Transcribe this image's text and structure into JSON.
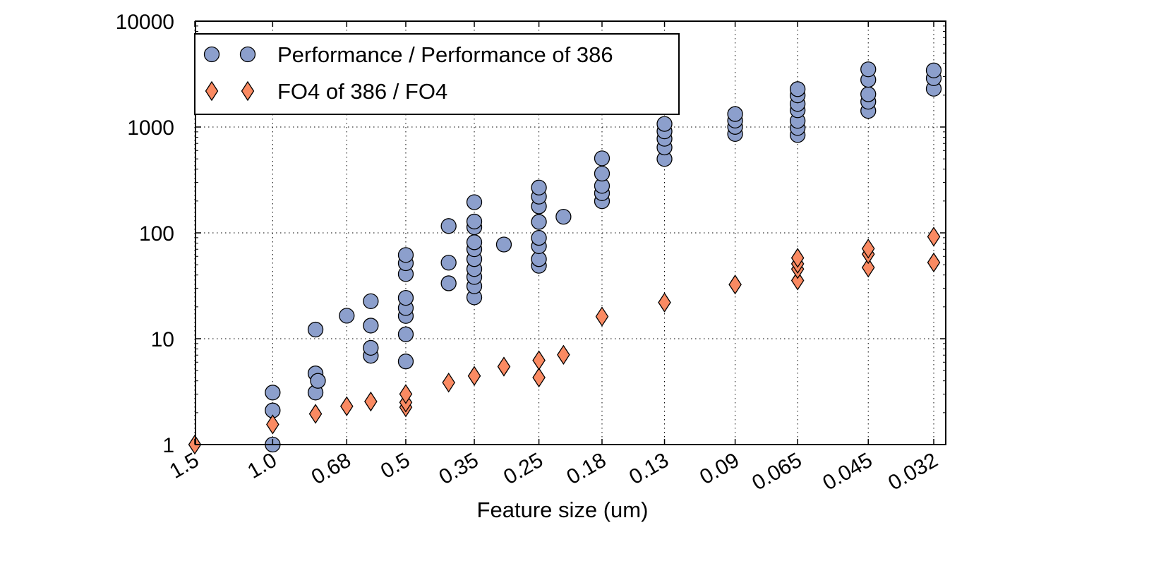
{
  "chart_data": {
    "type": "scatter",
    "title": "",
    "xlabel": "Feature size (um)",
    "ylabel": "",
    "y_scale": "log",
    "x_scale": "log (reversed)",
    "ylim": [
      1,
      10000
    ],
    "xlim": [
      1.5,
      0.032
    ],
    "grid": true,
    "legend_position": "top-left",
    "y_ticks": [
      "1",
      "10",
      "100",
      "1000",
      "10000"
    ],
    "x_ticks": [
      {
        "value": 1.5,
        "label": "1.5"
      },
      {
        "value": 1.0,
        "label": "1.0"
      },
      {
        "value": 0.68,
        "label": "0.68"
      },
      {
        "value": 0.5,
        "label": "0.5"
      },
      {
        "value": 0.35,
        "label": "0.35"
      },
      {
        "value": 0.25,
        "label": "0.25"
      },
      {
        "value": 0.18,
        "label": "0.18"
      },
      {
        "value": 0.13,
        "label": "0.13"
      },
      {
        "value": 0.09,
        "label": "0.09"
      },
      {
        "value": 0.065,
        "label": "0.065"
      },
      {
        "value": 0.045,
        "label": "0.045"
      },
      {
        "value": 0.032,
        "label": "0.032"
      }
    ],
    "series": [
      {
        "name": "Performance / Performance of 386",
        "marker": "circle",
        "color": "#8c9fcc",
        "points": [
          [
            1.0,
            1
          ],
          [
            1.0,
            2.1
          ],
          [
            1.0,
            3.1
          ],
          [
            0.8,
            3.1
          ],
          [
            0.8,
            4.7
          ],
          [
            0.79,
            4.0
          ],
          [
            0.8,
            12.2
          ],
          [
            0.68,
            16.5
          ],
          [
            0.6,
            6.9
          ],
          [
            0.6,
            8.2
          ],
          [
            0.6,
            13.3
          ],
          [
            0.6,
            22.6
          ],
          [
            0.5,
            6.1
          ],
          [
            0.5,
            11
          ],
          [
            0.5,
            16.4
          ],
          [
            0.5,
            19.5
          ],
          [
            0.5,
            24.3
          ],
          [
            0.5,
            40.8
          ],
          [
            0.5,
            51.7
          ],
          [
            0.5,
            61.8
          ],
          [
            0.4,
            33.4
          ],
          [
            0.4,
            52.3
          ],
          [
            0.4,
            116
          ],
          [
            0.35,
            24.6
          ],
          [
            0.35,
            31.3
          ],
          [
            0.35,
            38.3
          ],
          [
            0.35,
            45.5
          ],
          [
            0.35,
            56.5
          ],
          [
            0.35,
            70.1
          ],
          [
            0.35,
            81.5
          ],
          [
            0.35,
            113
          ],
          [
            0.35,
            128
          ],
          [
            0.35,
            195
          ],
          [
            0.3,
            77.6
          ],
          [
            0.25,
            48.9
          ],
          [
            0.25,
            56.5
          ],
          [
            0.25,
            74.8
          ],
          [
            0.25,
            89.7
          ],
          [
            0.25,
            127
          ],
          [
            0.25,
            178
          ],
          [
            0.25,
            220
          ],
          [
            0.25,
            268
          ],
          [
            0.22,
            142
          ],
          [
            0.18,
            199
          ],
          [
            0.18,
            237
          ],
          [
            0.18,
            278
          ],
          [
            0.18,
            363
          ],
          [
            0.18,
            506
          ],
          [
            0.13,
            499
          ],
          [
            0.13,
            641
          ],
          [
            0.13,
            775
          ],
          [
            0.13,
            910
          ],
          [
            0.13,
            1070
          ],
          [
            0.09,
            859
          ],
          [
            0.09,
            1003
          ],
          [
            0.09,
            1150
          ],
          [
            0.09,
            1327
          ],
          [
            0.065,
            840
          ],
          [
            0.065,
            979
          ],
          [
            0.065,
            1144
          ],
          [
            0.065,
            1440
          ],
          [
            0.065,
            1652
          ],
          [
            0.065,
            1990
          ],
          [
            0.065,
            2280
          ],
          [
            0.045,
            1420
          ],
          [
            0.045,
            1734
          ],
          [
            0.045,
            2040
          ],
          [
            0.045,
            2793
          ],
          [
            0.045,
            3506
          ],
          [
            0.032,
            2300
          ],
          [
            0.032,
            2891
          ],
          [
            0.032,
            3425
          ]
        ]
      },
      {
        "name": "FO4 of 386 / FO4",
        "marker": "diamond",
        "color": "#fa8a62",
        "points": [
          [
            1.5,
            1.0
          ],
          [
            1.0,
            1.55
          ],
          [
            0.8,
            1.95
          ],
          [
            0.68,
            2.3
          ],
          [
            0.6,
            2.55
          ],
          [
            0.5,
            2.25
          ],
          [
            0.5,
            2.5
          ],
          [
            0.5,
            3.0
          ],
          [
            0.4,
            3.85
          ],
          [
            0.35,
            4.45
          ],
          [
            0.3,
            5.45
          ],
          [
            0.25,
            4.3
          ],
          [
            0.25,
            6.25
          ],
          [
            0.22,
            7.05
          ],
          [
            0.18,
            16.2
          ],
          [
            0.13,
            22
          ],
          [
            0.09,
            32.5
          ],
          [
            0.065,
            35.5
          ],
          [
            0.065,
            45.5
          ],
          [
            0.065,
            51
          ],
          [
            0.065,
            58
          ],
          [
            0.045,
            47
          ],
          [
            0.045,
            63
          ],
          [
            0.045,
            71
          ],
          [
            0.032,
            52.5
          ],
          [
            0.032,
            92
          ]
        ]
      }
    ]
  }
}
